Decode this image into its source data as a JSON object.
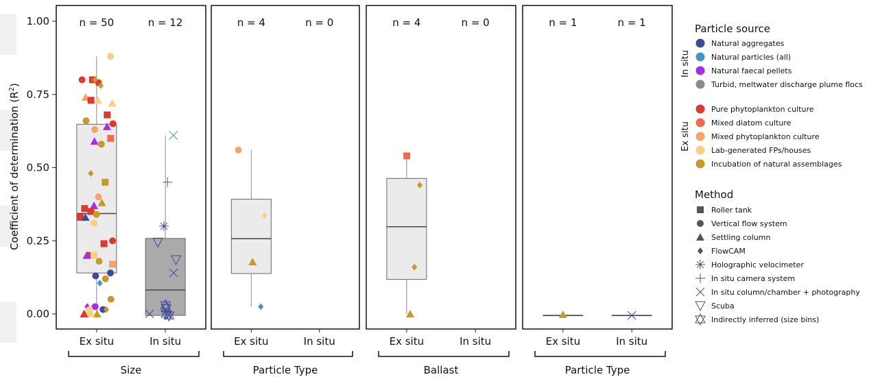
{
  "chart_data": {
    "type": "box+jitter",
    "ylabel_prefix": "Coefficient of determination (R",
    "ylabel_sup": "2",
    "ylabel_suffix": ")",
    "ylim": [
      0,
      1
    ],
    "yticks": [
      "0.00",
      "0.25",
      "0.50",
      "0.75",
      "1.00"
    ],
    "ytick_values": [
      0,
      0.25,
      0.5,
      0.75,
      1.0
    ],
    "panels": [
      {
        "group_label": "Size",
        "categories": [
          {
            "label": "Ex situ",
            "n_label": "n = 50",
            "box": {
              "q1": 0.14,
              "median": 0.343,
              "q3": 0.648,
              "whisker_low": 0.0,
              "whisker_high": 0.88
            },
            "box_color": "#ebebeb",
            "points": [
              {
                "y": 0.88,
                "source": "lab_fp",
                "method": "vertical"
              },
              {
                "y": 0.8,
                "source": "pure",
                "method": "vertical"
              },
              {
                "y": 0.79,
                "source": "pure",
                "method": "vertical"
              },
              {
                "y": 0.8,
                "source": "pure",
                "method": "roller"
              },
              {
                "y": 0.8,
                "source": "incubation",
                "method": "flowcam"
              },
              {
                "y": 0.78,
                "source": "incubation",
                "method": "flowcam"
              },
              {
                "y": 0.74,
                "source": "mixed_phyto",
                "method": "settling"
              },
              {
                "y": 0.73,
                "source": "pure",
                "method": "roller"
              },
              {
                "y": 0.73,
                "source": "lab_fp",
                "method": "settling"
              },
              {
                "y": 0.72,
                "source": "lab_fp",
                "method": "settling"
              },
              {
                "y": 0.68,
                "source": "pure",
                "method": "roller"
              },
              {
                "y": 0.66,
                "source": "incubation",
                "method": "vertical"
              },
              {
                "y": 0.65,
                "source": "pure",
                "method": "vertical"
              },
              {
                "y": 0.64,
                "source": "faecal",
                "method": "settling"
              },
              {
                "y": 0.63,
                "source": "mixed_phyto",
                "method": "vertical"
              },
              {
                "y": 0.6,
                "source": "mixed_diatom",
                "method": "roller"
              },
              {
                "y": 0.59,
                "source": "faecal",
                "method": "settling"
              },
              {
                "y": 0.58,
                "source": "incubation",
                "method": "vertical"
              },
              {
                "y": 0.48,
                "source": "incubation",
                "method": "flowcam"
              },
              {
                "y": 0.45,
                "source": "incubation",
                "method": "roller"
              },
              {
                "y": 0.4,
                "source": "mixed_phyto",
                "method": "vertical"
              },
              {
                "y": 0.38,
                "source": "incubation",
                "method": "settling"
              },
              {
                "y": 0.37,
                "source": "faecal",
                "method": "settling"
              },
              {
                "y": 0.36,
                "source": "pure",
                "method": "roller"
              },
              {
                "y": 0.35,
                "source": "pure",
                "method": "roller"
              },
              {
                "y": 0.34,
                "source": "incubation",
                "method": "vertical"
              },
              {
                "y": 0.33,
                "source": "pure",
                "method": "roller"
              },
              {
                "y": 0.33,
                "source": "aggregates",
                "method": "settling"
              },
              {
                "y": 0.31,
                "source": "lab_fp",
                "method": "vertical"
              },
              {
                "y": 0.25,
                "source": "pure",
                "method": "vertical"
              },
              {
                "y": 0.24,
                "source": "pure",
                "method": "roller"
              },
              {
                "y": 0.2,
                "source": "pure",
                "method": "roller"
              },
              {
                "y": 0.2,
                "source": "lab_fp",
                "method": "roller"
              },
              {
                "y": 0.2,
                "source": "faecal",
                "method": "settling"
              },
              {
                "y": 0.18,
                "source": "incubation",
                "method": "vertical"
              },
              {
                "y": 0.17,
                "source": "mixed_phyto",
                "method": "roller"
              },
              {
                "y": 0.14,
                "source": "aggregates",
                "method": "vertical"
              },
              {
                "y": 0.13,
                "source": "aggregates",
                "method": "vertical"
              },
              {
                "y": 0.12,
                "source": "incubation",
                "method": "vertical"
              },
              {
                "y": 0.105,
                "source": "particles",
                "method": "flowcam"
              },
              {
                "y": 0.05,
                "source": "incubation",
                "method": "vertical"
              },
              {
                "y": 0.025,
                "source": "faecal",
                "method": "vertical"
              },
              {
                "y": 0.025,
                "source": "faecal",
                "method": "flowcam"
              },
              {
                "y": 0.015,
                "source": "aggregates",
                "method": "vertical"
              },
              {
                "y": 0.015,
                "source": "incubation",
                "method": "flowcam"
              },
              {
                "y": 0.015,
                "source": "lab_fp",
                "method": "vertical"
              },
              {
                "y": 0.0,
                "source": "incubation",
                "method": "settling"
              },
              {
                "y": 0.0,
                "source": "incubation",
                "method": "settling"
              },
              {
                "y": 0.0,
                "source": "pure",
                "method": "settling"
              },
              {
                "y": 0.0,
                "source": "lab_fp",
                "method": "vertical"
              }
            ]
          },
          {
            "label": "In situ",
            "n_label": "n = 12",
            "box": {
              "q1": -0.005,
              "median": 0.082,
              "q3": 0.258,
              "whisker_low": -0.005,
              "whisker_high": 0.61
            },
            "box_color": "#aaaaaa",
            "points": [
              {
                "y": 0.61,
                "source": "particles",
                "method": "column"
              },
              {
                "y": 0.45,
                "source": "turbid",
                "method": "camera"
              },
              {
                "y": 0.3,
                "source": "aggregates",
                "method": "holo"
              },
              {
                "y": 0.245,
                "source": "aggregates",
                "method": "scuba"
              },
              {
                "y": 0.185,
                "source": "aggregates",
                "method": "scuba"
              },
              {
                "y": 0.14,
                "source": "aggregates",
                "method": "column"
              },
              {
                "y": 0.03,
                "source": "aggregates",
                "method": "indirect"
              },
              {
                "y": 0.02,
                "source": "aggregates",
                "method": "indirect"
              },
              {
                "y": 0.0,
                "source": "aggregates",
                "method": "indirect"
              },
              {
                "y": 0.0,
                "source": "aggregates",
                "method": "column"
              },
              {
                "y": -0.005,
                "source": "aggregates",
                "method": "column"
              },
              {
                "y": -0.005,
                "source": "aggregates",
                "method": "indirect"
              }
            ]
          }
        ]
      },
      {
        "group_label": "Particle Type",
        "categories": [
          {
            "label": "Ex situ",
            "n_label": "n = 4",
            "box": {
              "q1": 0.138,
              "median": 0.257,
              "q3": 0.392,
              "whisker_low": 0.025,
              "whisker_high": 0.56
            },
            "box_color": "#ebebeb",
            "points": [
              {
                "y": 0.56,
                "source": "mixed_phyto",
                "method": "vertical"
              },
              {
                "y": 0.337,
                "source": "lab_fp",
                "method": "flowcam"
              },
              {
                "y": 0.178,
                "source": "incubation",
                "method": "settling"
              },
              {
                "y": 0.025,
                "source": "particles",
                "method": "flowcam"
              }
            ]
          },
          {
            "label": "In situ",
            "n_label": "n = 0",
            "points": []
          }
        ]
      },
      {
        "group_label": "Ballast",
        "categories": [
          {
            "label": "Ex situ",
            "n_label": "n = 4",
            "box": {
              "q1": 0.118,
              "median": 0.298,
              "q3": 0.463,
              "whisker_low": 0.0,
              "whisker_high": 0.54
            },
            "box_color": "#ebebeb",
            "points": [
              {
                "y": 0.54,
                "source": "mixed_diatom",
                "method": "roller"
              },
              {
                "y": 0.44,
                "source": "incubation",
                "method": "flowcam"
              },
              {
                "y": 0.16,
                "source": "incubation",
                "method": "flowcam"
              },
              {
                "y": 0.0,
                "source": "incubation",
                "method": "settling"
              }
            ]
          },
          {
            "label": "In situ",
            "n_label": "n = 0",
            "points": []
          }
        ]
      },
      {
        "group_label": "Particle Type",
        "categories": [
          {
            "label": "Ex situ",
            "n_label": "n = 1",
            "box": {
              "q1": -0.005,
              "median": -0.005,
              "q3": -0.005,
              "whisker_low": -0.005,
              "whisker_high": -0.005
            },
            "box_color": "#ebebeb",
            "points": [
              {
                "y": -0.002,
                "source": "incubation",
                "method": "settling"
              }
            ]
          },
          {
            "label": "In situ",
            "n_label": "n = 1",
            "box": {
              "q1": -0.005,
              "median": -0.005,
              "q3": -0.005,
              "whisker_low": -0.005,
              "whisker_high": -0.005
            },
            "box_color": "#aaaaaa",
            "points": [
              {
                "y": -0.005,
                "source": "aggregates",
                "method": "column"
              }
            ]
          }
        ]
      }
    ],
    "legend_source": {
      "title": "Particle source",
      "groups": [
        {
          "label": "In situ",
          "items": [
            {
              "key": "aggregates",
              "label": "Natural aggregates",
              "color": "#3e4a9a"
            },
            {
              "key": "particles",
              "label": "Natural particles (all)",
              "color": "#4a90c8"
            },
            {
              "key": "faecal",
              "label": "Natural faecal pellets",
              "color": "#a72ee0"
            },
            {
              "key": "turbid",
              "label": "Turbid, meltwater discharge plume flocs",
              "color": "#8c8c8c"
            }
          ]
        },
        {
          "label": "Ex situ",
          "items": [
            {
              "key": "pure",
              "label": "Pure phytoplankton culture",
              "color": "#d93a32"
            },
            {
              "key": "mixed_diatom",
              "label": "Mixed diatom culture",
              "color": "#ef6a4c"
            },
            {
              "key": "mixed_phyto",
              "label": "Mixed phytoplankton culture",
              "color": "#f5a469"
            },
            {
              "key": "lab_fp",
              "label": "Lab-generated FPs/houses",
              "color": "#fbcd85"
            },
            {
              "key": "incubation",
              "label": "Incubation of natural assemblages",
              "color": "#c9982c"
            }
          ]
        }
      ]
    },
    "legend_method": {
      "title": "Method",
      "items": [
        {
          "key": "roller",
          "label": "Roller tank",
          "shape": "square"
        },
        {
          "key": "vertical",
          "label": "Vertical flow system",
          "shape": "circle"
        },
        {
          "key": "settling",
          "label": "Settling column",
          "shape": "triangle"
        },
        {
          "key": "flowcam",
          "label": "FlowCAM",
          "shape": "diamond"
        },
        {
          "key": "holo",
          "label": "Holographic velocimeter",
          "shape": "asterisk"
        },
        {
          "key": "camera",
          "label": "In situ camera system",
          "shape": "plus"
        },
        {
          "key": "column",
          "label": "In situ column/chamber + photography",
          "shape": "cross"
        },
        {
          "key": "scuba",
          "label": "Scuba",
          "shape": "triangle-down"
        },
        {
          "key": "indirect",
          "label": "Indirectly inferred (size bins)",
          "shape": "star-of-david"
        }
      ]
    }
  }
}
